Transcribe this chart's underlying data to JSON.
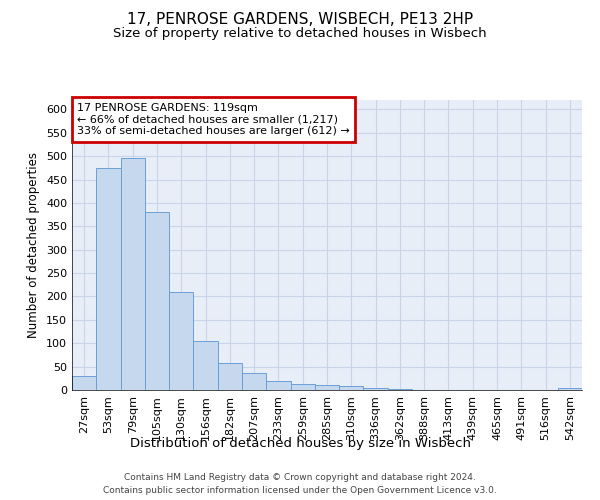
{
  "title": "17, PENROSE GARDENS, WISBECH, PE13 2HP",
  "subtitle": "Size of property relative to detached houses in Wisbech",
  "xlabel": "Distribution of detached houses by size in Wisbech",
  "ylabel": "Number of detached properties",
  "categories": [
    "27sqm",
    "53sqm",
    "79sqm",
    "105sqm",
    "130sqm",
    "156sqm",
    "182sqm",
    "207sqm",
    "233sqm",
    "259sqm",
    "285sqm",
    "310sqm",
    "336sqm",
    "362sqm",
    "388sqm",
    "413sqm",
    "439sqm",
    "465sqm",
    "491sqm",
    "516sqm",
    "542sqm"
  ],
  "values": [
    30,
    474,
    497,
    380,
    210,
    105,
    57,
    36,
    20,
    13,
    10,
    9,
    5,
    3,
    0,
    0,
    0,
    0,
    0,
    1,
    4
  ],
  "bar_color": "#c5d8ee",
  "bar_edge_color": "#6a9fd8",
  "grid_color": "#c8d4e8",
  "plot_bg_color": "#e8eef8",
  "background_color": "#ffffff",
  "annotation_line_color": "#cc0000",
  "annotation_text_line1": "17 PENROSE GARDENS: 119sqm",
  "annotation_text_line2": "← 66% of detached houses are smaller (1,217)",
  "annotation_text_line3": "33% of semi-detached houses are larger (612) →",
  "footer_line1": "Contains HM Land Registry data © Crown copyright and database right 2024.",
  "footer_line2": "Contains public sector information licensed under the Open Government Licence v3.0.",
  "ylim": [
    0,
    620
  ],
  "yticks": [
    0,
    50,
    100,
    150,
    200,
    250,
    300,
    350,
    400,
    450,
    500,
    550,
    600
  ],
  "title_fontsize": 11,
  "subtitle_fontsize": 9.5,
  "ylabel_fontsize": 8.5,
  "xlabel_fontsize": 9.5,
  "tick_fontsize": 8,
  "annot_fontsize": 8,
  "footer_fontsize": 6.5
}
